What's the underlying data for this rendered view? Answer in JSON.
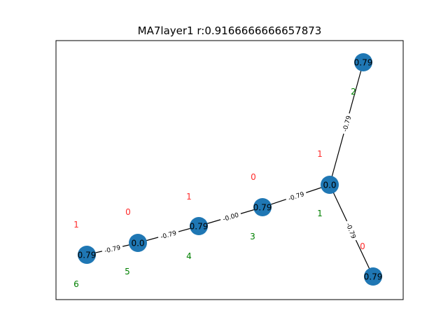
{
  "title": "MA7layer1 r:0.9166666666657873",
  "colors": {
    "node": "#1f77b4",
    "edge": "#000000",
    "red_annotation": "#ff2a2a",
    "green_annotation": "#008000",
    "frame": "#000000"
  },
  "nodes": [
    {
      "id": "n0",
      "label": "0.0"
    },
    {
      "id": "n1",
      "label": "0.79"
    },
    {
      "id": "n2",
      "label": "0.79"
    },
    {
      "id": "n3",
      "label": "0.79"
    },
    {
      "id": "n4",
      "label": "0.79"
    },
    {
      "id": "n5",
      "label": "0.0"
    },
    {
      "id": "n6",
      "label": "0.79"
    }
  ],
  "edges": [
    {
      "from": "n0",
      "to": "n1",
      "label": "-0.79"
    },
    {
      "from": "n0",
      "to": "n2",
      "label": "-0.79"
    },
    {
      "from": "n0",
      "to": "n3",
      "label": "-0.79"
    },
    {
      "from": "n3",
      "to": "n4",
      "label": "-0.00"
    },
    {
      "from": "n4",
      "to": "n5",
      "label": "-0.79"
    },
    {
      "from": "n5",
      "to": "n6",
      "label": "-0.79"
    }
  ],
  "annotations": {
    "red": [
      "1",
      "0",
      "1",
      "0",
      "0",
      "1"
    ],
    "green": [
      "2",
      "1",
      "3",
      "4",
      "5",
      "6"
    ]
  }
}
